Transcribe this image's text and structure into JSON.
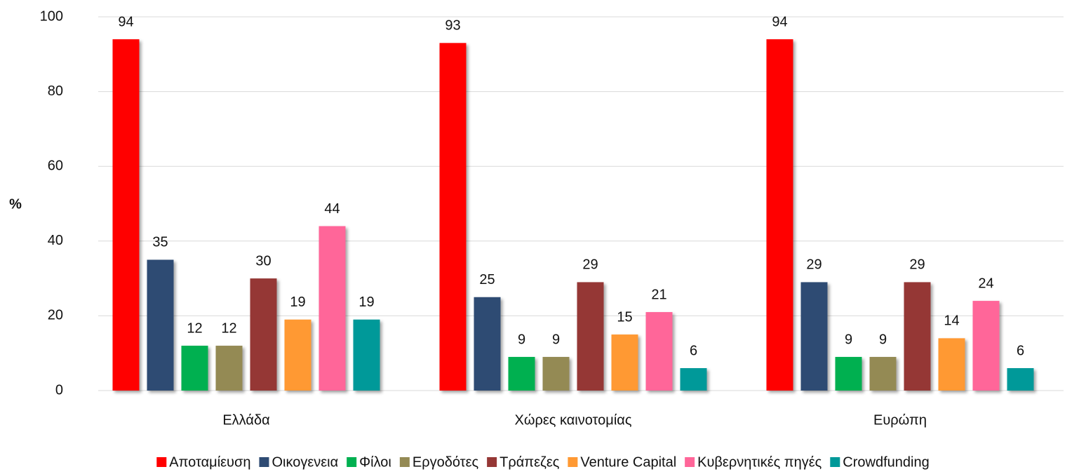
{
  "chart_data": {
    "type": "bar",
    "y_label": "%",
    "categories": [
      "Ελλάδα",
      "Χώρες καινοτομίας",
      "Ευρώπη"
    ],
    "series": [
      {
        "name": "Αποταμίευση",
        "color": "#ff0000",
        "values": [
          94,
          93,
          94
        ]
      },
      {
        "name": "Οικογενεια",
        "color": "#2e4b73",
        "values": [
          35,
          25,
          29
        ]
      },
      {
        "name": "Φίλοι",
        "color": "#00b050",
        "values": [
          12,
          9,
          9
        ]
      },
      {
        "name": "Εργοδότες",
        "color": "#948a54",
        "values": [
          12,
          9,
          9
        ]
      },
      {
        "name": "Τράπεζες",
        "color": "#953735",
        "values": [
          30,
          29,
          29
        ]
      },
      {
        "name": "Venture Capital",
        "color": "#ff9933",
        "values": [
          19,
          15,
          14
        ]
      },
      {
        "name": "Κυβερνητικές πηγές",
        "color": "#ff6699",
        "values": [
          44,
          21,
          24
        ]
      },
      {
        "name": "Crowdfunding",
        "color": "#009999",
        "values": [
          19,
          6,
          6
        ]
      }
    ],
    "ylim": [
      0,
      100
    ],
    "yticks": [
      0,
      20,
      40,
      60,
      80,
      100
    ],
    "grid": true,
    "legend": "bottom"
  }
}
